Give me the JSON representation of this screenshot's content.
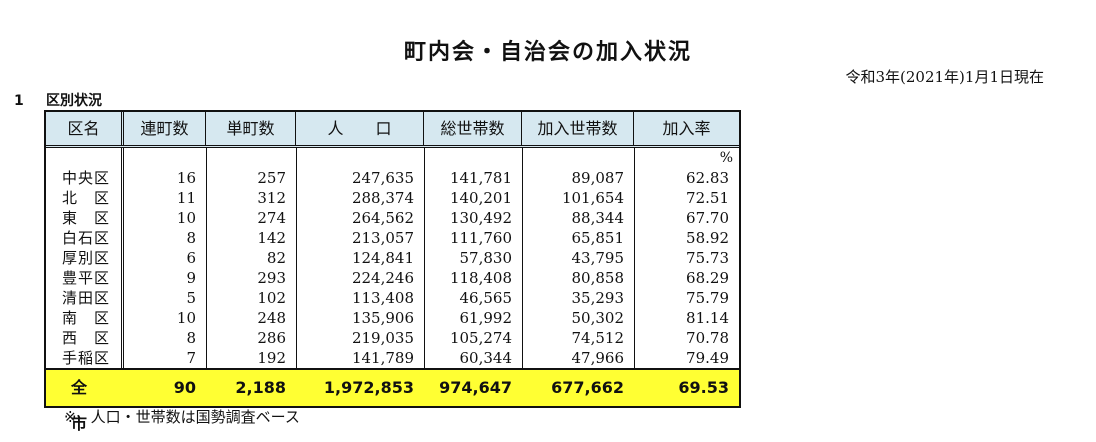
{
  "title": "町内会・自治会の加入状況",
  "date": "令和3年(2021年)1月1日現在",
  "section": {
    "number": "1",
    "label": "区別状況"
  },
  "table": {
    "headers": [
      "区名",
      "連町数",
      "単町数",
      "人　　口",
      "総世帯数",
      "加入世帯数",
      "加入率"
    ],
    "unit": "%",
    "rows": [
      [
        "中央区",
        "16",
        "257",
        "247,635",
        "141,781",
        "89,087",
        "62.83"
      ],
      [
        "北　区",
        "11",
        "312",
        "288,374",
        "140,201",
        "101,654",
        "72.51"
      ],
      [
        "東　区",
        "10",
        "274",
        "264,562",
        "130,492",
        "88,344",
        "67.70"
      ],
      [
        "白石区",
        "8",
        "142",
        "213,057",
        "111,760",
        "65,851",
        "58.92"
      ],
      [
        "厚別区",
        "6",
        "82",
        "124,841",
        "57,830",
        "43,795",
        "75.73"
      ],
      [
        "豊平区",
        "9",
        "293",
        "224,246",
        "118,408",
        "80,858",
        "68.29"
      ],
      [
        "清田区",
        "5",
        "102",
        "113,408",
        "46,565",
        "35,293",
        "75.79"
      ],
      [
        "南　区",
        "10",
        "248",
        "135,906",
        "61,992",
        "50,302",
        "81.14"
      ],
      [
        "西　区",
        "8",
        "286",
        "219,035",
        "105,274",
        "74,512",
        "70.78"
      ],
      [
        "手稲区",
        "7",
        "192",
        "141,789",
        "60,344",
        "47,966",
        "79.49"
      ]
    ],
    "total": [
      "全　市",
      "90",
      "2,188",
      "1,972,853",
      "974,647",
      "677,662",
      "69.53"
    ]
  },
  "note": {
    "mark": "※",
    "text": "人口・世帯数は国勢調査ベース"
  },
  "colors": {
    "header_bg": "#d6e8f0",
    "total_bg": "#ffff33"
  }
}
